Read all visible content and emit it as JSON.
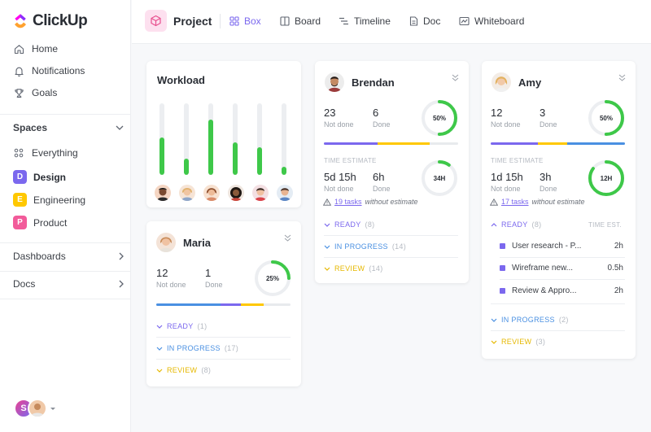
{
  "app": {
    "brand": "ClickUp",
    "nav": [
      {
        "label": "Home",
        "icon": "home-icon"
      },
      {
        "label": "Notifications",
        "icon": "bell-icon"
      },
      {
        "label": "Goals",
        "icon": "trophy-icon"
      }
    ],
    "spaces_label": "Spaces",
    "spaces": [
      {
        "label": "Everything",
        "badge": ""
      },
      {
        "label": "Design",
        "badge": "D",
        "color": "#7b68ee"
      },
      {
        "label": "Engineering",
        "badge": "E",
        "color": "#ffc800"
      },
      {
        "label": "Product",
        "badge": "P",
        "color": "#f25b9a"
      }
    ],
    "dashboards_label": "Dashboards",
    "docs_label": "Docs",
    "user_initial": "S"
  },
  "topbar": {
    "project": "Project",
    "views": [
      "Box",
      "Board",
      "Timeline",
      "Doc",
      "Whiteboard"
    ]
  },
  "workload": {
    "title": "Workload",
    "bars": [
      0.52,
      0.23,
      0.77,
      0.46,
      0.39,
      0.11
    ]
  },
  "labels": {
    "not_done": "Not done",
    "done": "Done",
    "time_estimate": "TIME ESTIMATE",
    "without_estimate": "without estimate",
    "time_est_col": "TIME EST."
  },
  "colors": {
    "accent": "#7b68ee",
    "green": "#3ec849",
    "yellow": "#ffc800",
    "blue": "#4a90e2"
  },
  "people": {
    "brendan": {
      "name": "Brendan",
      "not_done": "23",
      "done": "6",
      "pct": "50%",
      "progress": 0.5,
      "est_not_done": "5d 15h",
      "est_done": "6h",
      "est_ring": "34H",
      "est_progress": 0.1,
      "tasks_link": "19 tasks",
      "groups": [
        {
          "name": "READY",
          "count": "(8)",
          "color": "#7b68ee"
        },
        {
          "name": "IN PROGRESS",
          "count": "(14)",
          "color": "#4a90e2"
        },
        {
          "name": "REVIEW",
          "count": "(14)",
          "color": "#e6b800"
        }
      ]
    },
    "amy": {
      "name": "Amy",
      "not_done": "12",
      "done": "3",
      "pct": "50%",
      "progress": 0.5,
      "est_not_done": "1d 15h",
      "est_done": "3h",
      "est_ring": "12H",
      "est_progress": 0.85,
      "tasks_link": "17 tasks",
      "groups": [
        {
          "name": "READY",
          "count": "(8)",
          "color": "#7b68ee"
        },
        {
          "name": "IN PROGRESS",
          "count": "(2)",
          "color": "#4a90e2"
        },
        {
          "name": "REVIEW",
          "count": "(3)",
          "color": "#e6b800"
        }
      ],
      "tasks": [
        {
          "title": "User research - P...",
          "hours": "2h"
        },
        {
          "title": "Wireframe new...",
          "hours": "0.5h"
        },
        {
          "title": "Review & Appro...",
          "hours": "2h"
        }
      ]
    },
    "maria": {
      "name": "Maria",
      "not_done": "12",
      "done": "1",
      "pct": "25%",
      "progress": 0.25,
      "groups": [
        {
          "name": "READY",
          "count": "(1)",
          "color": "#7b68ee"
        },
        {
          "name": "IN PROGRESS",
          "count": "(17)",
          "color": "#4a90e2"
        },
        {
          "name": "REVIEW",
          "count": "(8)",
          "color": "#e6b800"
        }
      ]
    }
  }
}
